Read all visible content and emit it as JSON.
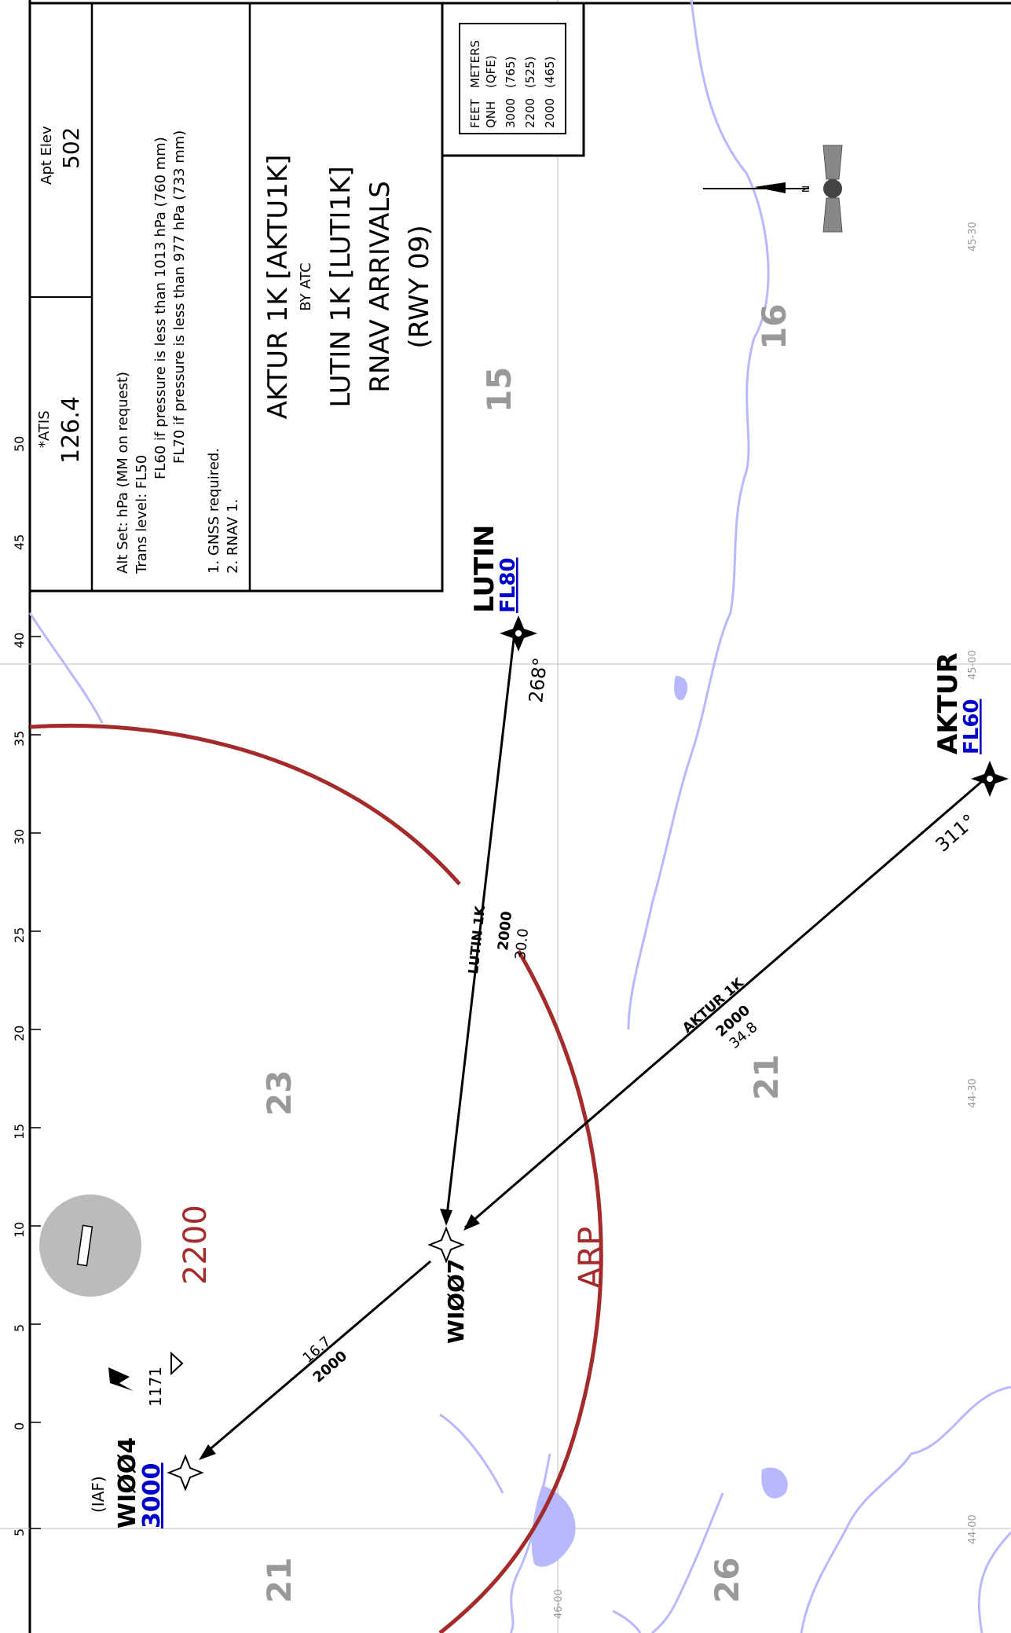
{
  "chart": {
    "header": {
      "apt_elev_label": "Apt Elev",
      "apt_elev_value": "502",
      "atis_label": "*ATIS",
      "atis_freq": "126.4",
      "notes": [
        "Alt Set: hPa (MM on request)",
        "Trans level: FL50",
        "FL60 if pressure is less than 1013 hPa (760 mm)",
        "FL70 if pressure is less than 977 hPa (733 mm)",
        "1. GNSS required.",
        "2. RNAV 1."
      ],
      "title_lines": [
        "AKTUR 1K [AKTU1K]",
        "BY ATC",
        "LUTIN 1K [LUTI1K]",
        "RNAV ARRIVALS",
        "(RWY 09)"
      ]
    },
    "conversion_table": {
      "header": [
        "FEET",
        "METERS"
      ],
      "subheader": [
        "QNH",
        "(QFE)"
      ],
      "rows": [
        [
          "3000",
          "(765)"
        ],
        [
          "2200",
          "(525)"
        ],
        [
          "2000",
          "(465)"
        ]
      ]
    },
    "waypoints": {
      "lutin": {
        "name": "LUTIN",
        "alt": "FL80",
        "course": "268°"
      },
      "aktur": {
        "name": "AKTUR",
        "alt": "FL60",
        "course": "311°"
      },
      "wi007": {
        "name": "WIØØ7"
      },
      "wi004": {
        "name": "WIØØ4",
        "tag": "(IAF)",
        "alt": "3000"
      }
    },
    "legs": {
      "lutin": {
        "name": "LUTIN 1K",
        "alt": "2000",
        "dist": "30.0"
      },
      "aktur": {
        "name": "AKTUR 1K",
        "alt": "2000",
        "dist": "34.8"
      },
      "final": {
        "dist": "16.7",
        "alt": "2000"
      }
    },
    "arp_label": "ARP",
    "msa_alt": "2200",
    "obstacle_elev": "1171",
    "north_label": "N",
    "grid_numbers": [
      "15",
      "16",
      "23",
      "21",
      "21",
      "26"
    ],
    "scale_numbers": [
      "5",
      "0",
      "5",
      "10",
      "15",
      "20",
      "25",
      "30",
      "35",
      "40",
      "45",
      "50"
    ],
    "lat_labels": [
      "45-30",
      "45-00",
      "44-30",
      "44-00"
    ],
    "lon_labels": [
      "46-00"
    ],
    "colors": {
      "arc": "#a52a2a",
      "river": "#b8b8ff",
      "alt_blue": "#0000cc",
      "grid_gray": "#999999"
    }
  }
}
